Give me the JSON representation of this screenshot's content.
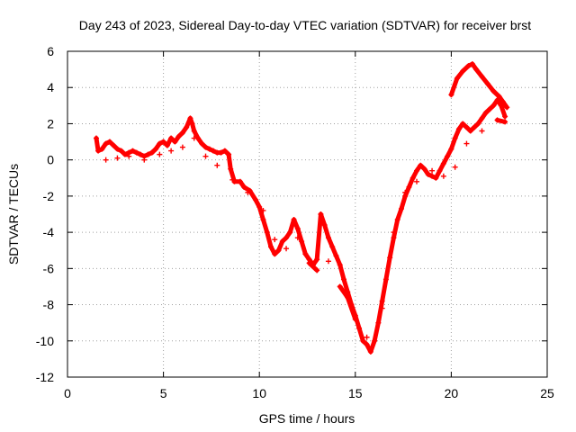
{
  "chart_data": {
    "type": "scatter",
    "title": "Day 243 of 2023, Sidereal Day-to-day VTEC variation (SDTVAR) for receiver brst",
    "xlabel": "GPS time / hours",
    "ylabel": "SDTVAR / TECUs",
    "xlim": [
      0,
      25
    ],
    "ylim": [
      -12,
      6
    ],
    "xticks": [
      0,
      5,
      10,
      15,
      20,
      25
    ],
    "yticks": [
      -12,
      -10,
      -8,
      -6,
      -4,
      -2,
      0,
      2,
      4,
      6
    ],
    "grid": true,
    "marker": "+",
    "color": "#ff0000",
    "series": [
      {
        "name": "brst",
        "points": [
          [
            1.5,
            1.2
          ],
          [
            1.6,
            0.5
          ],
          [
            1.8,
            0.6
          ],
          [
            2.0,
            0.9
          ],
          [
            2.2,
            1.0
          ],
          [
            2.4,
            0.8
          ],
          [
            2.6,
            0.6
          ],
          [
            2.8,
            0.5
          ],
          [
            3.0,
            0.3
          ],
          [
            3.2,
            0.4
          ],
          [
            3.4,
            0.5
          ],
          [
            3.6,
            0.4
          ],
          [
            3.8,
            0.3
          ],
          [
            4.0,
            0.2
          ],
          [
            4.2,
            0.3
          ],
          [
            4.4,
            0.4
          ],
          [
            4.6,
            0.6
          ],
          [
            4.8,
            0.9
          ],
          [
            5.0,
            1.0
          ],
          [
            5.2,
            0.8
          ],
          [
            5.4,
            1.2
          ],
          [
            5.6,
            1.0
          ],
          [
            5.8,
            1.3
          ],
          [
            6.0,
            1.5
          ],
          [
            6.2,
            1.8
          ],
          [
            6.4,
            2.3
          ],
          [
            6.5,
            2.0
          ],
          [
            6.6,
            1.6
          ],
          [
            6.8,
            1.2
          ],
          [
            7.0,
            0.9
          ],
          [
            7.2,
            0.7
          ],
          [
            7.4,
            0.6
          ],
          [
            7.6,
            0.5
          ],
          [
            7.8,
            0.4
          ],
          [
            8.0,
            0.4
          ],
          [
            8.2,
            0.5
          ],
          [
            8.4,
            0.3
          ],
          [
            8.5,
            -0.5
          ],
          [
            8.7,
            -1.2
          ],
          [
            9.0,
            -1.2
          ],
          [
            9.2,
            -1.5
          ],
          [
            9.5,
            -1.7
          ],
          [
            9.8,
            -2.2
          ],
          [
            10.0,
            -2.6
          ],
          [
            10.2,
            -3.3
          ],
          [
            10.4,
            -4.0
          ],
          [
            10.6,
            -4.8
          ],
          [
            10.8,
            -5.2
          ],
          [
            11.0,
            -5.0
          ],
          [
            11.2,
            -4.5
          ],
          [
            11.4,
            -4.3
          ],
          [
            11.6,
            -4.0
          ],
          [
            11.8,
            -3.3
          ],
          [
            12.0,
            -3.8
          ],
          [
            12.2,
            -4.5
          ],
          [
            12.4,
            -5.2
          ],
          [
            12.6,
            -5.5
          ],
          [
            12.8,
            -5.8
          ],
          [
            13.0,
            -5.5
          ],
          [
            13.2,
            -3.0
          ],
          [
            13.4,
            -3.6
          ],
          [
            13.6,
            -4.3
          ],
          [
            13.8,
            -4.8
          ],
          [
            14.0,
            -5.3
          ],
          [
            14.2,
            -5.8
          ],
          [
            14.4,
            -6.6
          ],
          [
            14.6,
            -7.3
          ],
          [
            14.8,
            -8.0
          ],
          [
            15.0,
            -8.6
          ],
          [
            15.2,
            -9.3
          ],
          [
            15.4,
            -10.0
          ],
          [
            15.6,
            -10.2
          ],
          [
            15.8,
            -10.6
          ],
          [
            16.0,
            -10.0
          ],
          [
            16.2,
            -9.0
          ],
          [
            16.4,
            -7.8
          ],
          [
            16.6,
            -6.6
          ],
          [
            16.8,
            -5.4
          ],
          [
            17.0,
            -4.3
          ],
          [
            17.2,
            -3.3
          ],
          [
            17.4,
            -2.7
          ],
          [
            17.6,
            -2.0
          ],
          [
            17.8,
            -1.5
          ],
          [
            18.0,
            -1.0
          ],
          [
            18.2,
            -0.6
          ],
          [
            18.4,
            -0.3
          ],
          [
            18.6,
            -0.5
          ],
          [
            18.8,
            -0.8
          ],
          [
            19.0,
            -0.9
          ],
          [
            19.2,
            -1.0
          ],
          [
            19.4,
            -0.6
          ],
          [
            19.6,
            -0.2
          ],
          [
            19.8,
            0.2
          ],
          [
            20.0,
            0.6
          ],
          [
            20.2,
            1.2
          ],
          [
            20.4,
            1.7
          ],
          [
            20.6,
            2.0
          ],
          [
            20.8,
            1.8
          ],
          [
            21.0,
            1.6
          ],
          [
            21.2,
            1.8
          ],
          [
            21.4,
            2.0
          ],
          [
            21.6,
            2.3
          ],
          [
            21.8,
            2.6
          ],
          [
            22.0,
            2.8
          ],
          [
            22.2,
            3.0
          ],
          [
            22.4,
            3.3
          ],
          [
            22.6,
            3.0
          ],
          [
            22.8,
            2.4
          ],
          [
            20.0,
            3.6
          ],
          [
            20.3,
            4.5
          ],
          [
            20.6,
            4.9
          ],
          [
            20.9,
            5.2
          ],
          [
            21.1,
            5.3
          ],
          [
            21.3,
            5.0
          ],
          [
            21.6,
            4.6
          ],
          [
            21.9,
            4.2
          ],
          [
            22.2,
            3.8
          ],
          [
            22.5,
            3.5
          ],
          [
            22.7,
            3.2
          ],
          [
            22.9,
            2.9
          ],
          [
            2.0,
            0.0
          ],
          [
            2.6,
            0.1
          ],
          [
            3.2,
            0.2
          ],
          [
            4.0,
            0.0
          ],
          [
            4.8,
            0.3
          ],
          [
            5.4,
            0.5
          ],
          [
            6.0,
            0.7
          ],
          [
            6.6,
            1.2
          ],
          [
            7.2,
            0.2
          ],
          [
            7.8,
            -0.3
          ],
          [
            8.6,
            -1.1
          ],
          [
            9.4,
            -1.8
          ],
          [
            10.2,
            -2.8
          ],
          [
            10.8,
            -4.4
          ],
          [
            11.4,
            -4.9
          ],
          [
            12.0,
            -4.3
          ],
          [
            12.6,
            -5.7
          ],
          [
            13.0,
            -6.1
          ],
          [
            13.6,
            -5.6
          ],
          [
            14.2,
            -7.0
          ],
          [
            14.6,
            -7.6
          ],
          [
            15.0,
            -8.8
          ],
          [
            15.6,
            -9.8
          ],
          [
            16.4,
            -8.2
          ],
          [
            17.0,
            -4.0
          ],
          [
            17.6,
            -1.8
          ],
          [
            18.2,
            -1.2
          ],
          [
            19.0,
            -0.6
          ],
          [
            19.6,
            -0.9
          ],
          [
            20.2,
            -0.4
          ],
          [
            20.8,
            0.9
          ],
          [
            21.6,
            1.6
          ],
          [
            22.4,
            2.2
          ],
          [
            22.8,
            2.1
          ]
        ]
      }
    ]
  }
}
